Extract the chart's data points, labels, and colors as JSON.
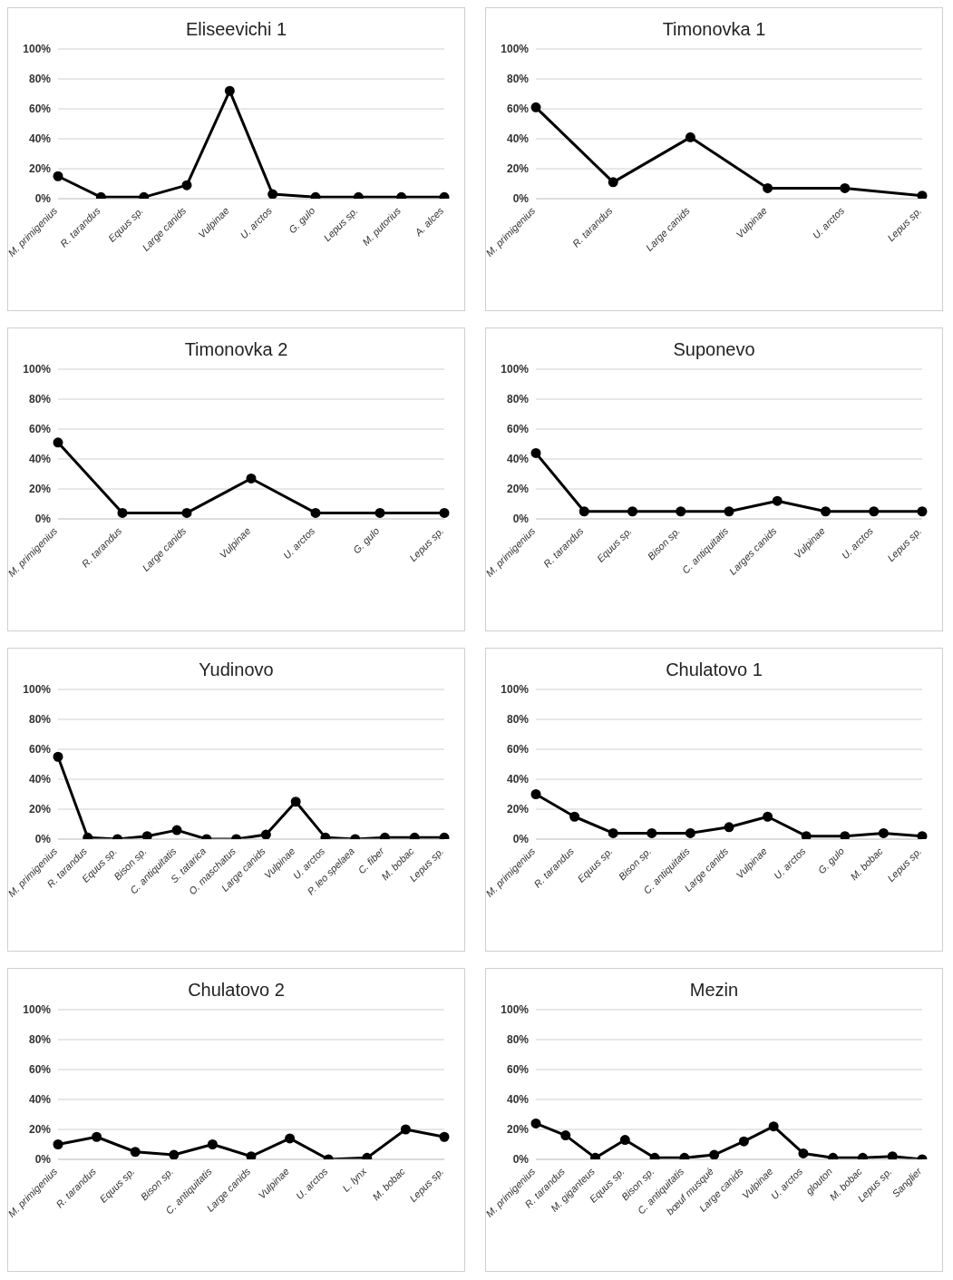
{
  "chart_data": [
    {
      "type": "line",
      "title": "Eliseevichi 1",
      "categories": [
        "M. primigenius",
        "R. tarandus",
        "Equus sp.",
        "Large canids",
        "Vulpinae",
        "U. arctos",
        "G. gulo",
        "Lepus sp.",
        "M. putorius",
        "A. alces"
      ],
      "values": [
        15,
        1,
        1,
        9,
        72,
        3,
        1,
        1,
        1,
        1
      ],
      "color": "#000000",
      "ylim": [
        0,
        100
      ],
      "yticks": [
        {
          "value": 0,
          "label": "0%"
        },
        {
          "value": 20,
          "label": "20%"
        },
        {
          "value": 40,
          "label": "40%"
        },
        {
          "value": 60,
          "label": "60%"
        },
        {
          "value": 80,
          "label": "80%"
        },
        {
          "value": 100,
          "label": "100%"
        }
      ],
      "grid": "y",
      "marker": "circle",
      "line_style": "solid"
    },
    {
      "type": "line",
      "title": "Timonovka 1",
      "categories": [
        "M. primigenius",
        "R. tarandus",
        "Large canids",
        "Vulpinae",
        "U. arctos",
        "Lepus sp."
      ],
      "values": [
        61,
        11,
        41,
        7,
        7,
        2
      ],
      "color": "#000000",
      "ylim": [
        0,
        100
      ],
      "yticks": [
        {
          "value": 0,
          "label": "0%"
        },
        {
          "value": 20,
          "label": "20%"
        },
        {
          "value": 40,
          "label": "40%"
        },
        {
          "value": 60,
          "label": "60%"
        },
        {
          "value": 80,
          "label": "80%"
        },
        {
          "value": 100,
          "label": "100%"
        }
      ],
      "grid": "y",
      "marker": "circle",
      "line_style": "solid"
    },
    {
      "type": "line",
      "title": "Timonovka 2",
      "categories": [
        "M. primigenius",
        "R. tarandus",
        "Large canids",
        "Vulpinae",
        "U. arctos",
        "G. gulo",
        "Lepus sp."
      ],
      "values": [
        51,
        4,
        4,
        27,
        4,
        4,
        4
      ],
      "color": "#000000",
      "ylim": [
        0,
        100
      ],
      "yticks": [
        {
          "value": 0,
          "label": "0%"
        },
        {
          "value": 20,
          "label": "20%"
        },
        {
          "value": 40,
          "label": "40%"
        },
        {
          "value": 60,
          "label": "60%"
        },
        {
          "value": 80,
          "label": "80%"
        },
        {
          "value": 100,
          "label": "100%"
        }
      ],
      "grid": "y",
      "marker": "circle",
      "line_style": "solid"
    },
    {
      "type": "line",
      "title": "Suponevo",
      "categories": [
        "M. primigenius",
        "R. tarandus",
        "Equus sp.",
        "Bison sp.",
        "C. antiquitatis",
        "Larges canids",
        "Vulpinae",
        "U. arctos",
        "Lepus sp."
      ],
      "values": [
        44,
        5,
        5,
        5,
        5,
        12,
        5,
        5,
        5
      ],
      "color": "#000000",
      "ylim": [
        0,
        100
      ],
      "yticks": [
        {
          "value": 0,
          "label": "0%"
        },
        {
          "value": 20,
          "label": "20%"
        },
        {
          "value": 40,
          "label": "40%"
        },
        {
          "value": 60,
          "label": "60%"
        },
        {
          "value": 80,
          "label": "80%"
        },
        {
          "value": 100,
          "label": "100%"
        }
      ],
      "grid": "y",
      "marker": "circle",
      "line_style": "solid"
    },
    {
      "type": "line",
      "title": "Yudinovo",
      "categories": [
        "M. primigenius",
        "R. tarandus",
        "Equus sp.",
        "Bison sp.",
        "C. antiquitatis",
        "S. tatarica",
        "O. maschatus",
        "Large canids",
        "Vulpinae",
        "U. arctos",
        "P. leo spelaea",
        "C. fiber",
        "M. bobac",
        "Lepus sp."
      ],
      "values": [
        55,
        1,
        0,
        2,
        6,
        0,
        0,
        3,
        25,
        1,
        0,
        1,
        1,
        1
      ],
      "color": "#000000",
      "ylim": [
        0,
        100
      ],
      "yticks": [
        {
          "value": 0,
          "label": "0%"
        },
        {
          "value": 20,
          "label": "20%"
        },
        {
          "value": 40,
          "label": "40%"
        },
        {
          "value": 60,
          "label": "60%"
        },
        {
          "value": 80,
          "label": "80%"
        },
        {
          "value": 100,
          "label": "100%"
        }
      ],
      "grid": "y",
      "marker": "circle",
      "line_style": "solid"
    },
    {
      "type": "line",
      "title": "Chulatovo 1",
      "categories": [
        "M. primigenius",
        "R. tarandus",
        "Equus sp.",
        "Bison sp.",
        "C. antiquitatis",
        "Large canids",
        "Vulpinae",
        "U. arctos",
        "G. gulo",
        "M. bobac",
        "Lepus sp."
      ],
      "values": [
        30,
        15,
        4,
        4,
        4,
        8,
        15,
        2,
        2,
        4,
        2
      ],
      "color": "#000000",
      "ylim": [
        0,
        100
      ],
      "yticks": [
        {
          "value": 0,
          "label": "0%"
        },
        {
          "value": 20,
          "label": "20%"
        },
        {
          "value": 40,
          "label": "40%"
        },
        {
          "value": 60,
          "label": "60%"
        },
        {
          "value": 80,
          "label": "80%"
        },
        {
          "value": 100,
          "label": "100%"
        }
      ],
      "grid": "y",
      "marker": "circle",
      "line_style": "solid"
    },
    {
      "type": "line",
      "title": "Chulatovo 2",
      "categories": [
        "M. primigenius",
        "R. tarandus",
        "Equus sp.",
        "Bison sp.",
        "C. antiquitatis",
        "Large canids",
        "Vulpinae",
        "U. arctos",
        "L. lynx",
        "M. bobac",
        "Lepus sp."
      ],
      "values": [
        10,
        15,
        5,
        3,
        10,
        2,
        14,
        0,
        1,
        20,
        15
      ],
      "color": "#000000",
      "ylim": [
        0,
        100
      ],
      "yticks": [
        {
          "value": 0,
          "label": "0%"
        },
        {
          "value": 20,
          "label": "20%"
        },
        {
          "value": 40,
          "label": "40%"
        },
        {
          "value": 60,
          "label": "60%"
        },
        {
          "value": 80,
          "label": "80%"
        },
        {
          "value": 100,
          "label": "100%"
        }
      ],
      "grid": "y",
      "marker": "circle",
      "line_style": "solid"
    },
    {
      "type": "line",
      "title": "Mezin",
      "categories": [
        "M. primigenius",
        "R. tarandus",
        "M. giganteus",
        "Equus sp.",
        "Bison sp.",
        "C. antiquitatis",
        "bœuf musqué",
        "Large canids",
        "Vulpinae",
        "U. arctos",
        "glouton",
        "M. bobac",
        "Lepus sp.",
        "Sanglier"
      ],
      "values": [
        24,
        16,
        1,
        13,
        1,
        1,
        3,
        12,
        22,
        4,
        1,
        1,
        2,
        0
      ],
      "color": "#000000",
      "ylim": [
        0,
        100
      ],
      "yticks": [
        {
          "value": 0,
          "label": "0%"
        },
        {
          "value": 20,
          "label": "20%"
        },
        {
          "value": 40,
          "label": "40%"
        },
        {
          "value": 60,
          "label": "60%"
        },
        {
          "value": 80,
          "label": "80%"
        },
        {
          "value": 100,
          "label": "100%"
        }
      ],
      "grid": "y",
      "marker": "circle",
      "line_style": "solid"
    }
  ]
}
